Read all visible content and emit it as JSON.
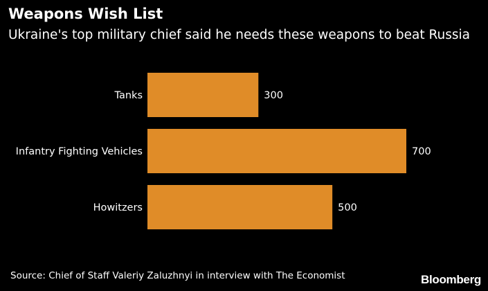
{
  "title": "Weapons Wish List",
  "subtitle": "Ukraine's top military chief said he needs these weapons to beat Russia",
  "source": "Source: Chief of Staff Valeriy Zaluzhnyi in interview with The Economist",
  "logo": "Bloomberg",
  "colors": {
    "background": "#000000",
    "bar": "#E08C28",
    "text": "#ffffff"
  },
  "chart_data": {
    "type": "bar",
    "orientation": "horizontal",
    "title": "Weapons Wish List",
    "subtitle": "Ukraine's top military chief said he needs these weapons to beat Russia",
    "categories": [
      "Tanks",
      "Infantry Fighting Vehicles",
      "Howitzers"
    ],
    "values": [
      300,
      700,
      500
    ],
    "value_labels": [
      "300",
      "700",
      "500"
    ],
    "xlabel": "",
    "ylabel": "",
    "xlim": [
      0,
      700
    ],
    "grid": false,
    "legend": "none"
  }
}
